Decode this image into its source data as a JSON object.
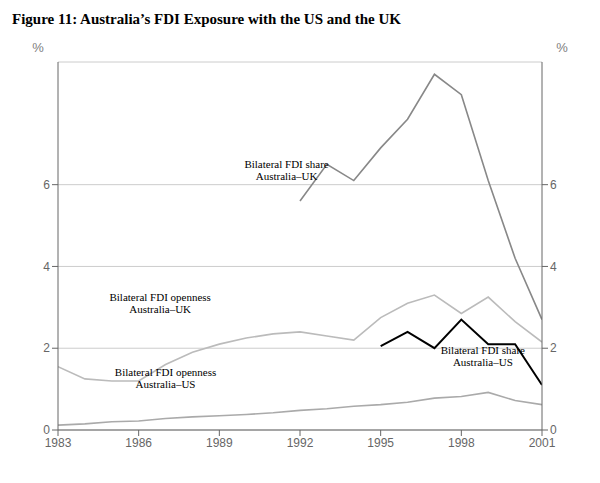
{
  "chart_data": {
    "type": "line",
    "title": "Figure 11: Australia’s FDI Exposure with the US and the UK",
    "x": [
      1983,
      1984,
      1985,
      1986,
      1987,
      1988,
      1989,
      1990,
      1991,
      1992,
      1993,
      1994,
      1995,
      1996,
      1997,
      1998,
      1999,
      2000,
      2001
    ],
    "xlim": [
      1983,
      2001
    ],
    "xticks": [
      1983,
      1986,
      1989,
      1992,
      1995,
      1998,
      2001
    ],
    "ylim": [
      0,
      9
    ],
    "yticks": [
      0,
      2,
      4,
      6
    ],
    "y2lim": [
      0,
      9
    ],
    "y2ticks": [
      0,
      2,
      4,
      6
    ],
    "ylabel": "%",
    "y2label": "%",
    "grid": true,
    "series": [
      {
        "color": "#888888",
        "values": [
          null,
          null,
          null,
          null,
          null,
          null,
          null,
          null,
          null,
          5.6,
          6.5,
          6.1,
          6.9,
          7.6,
          8.7,
          8.2,
          6.1,
          4.2,
          2.7
        ]
      },
      {
        "color": "#bbbbbb",
        "values": [
          1.55,
          1.25,
          1.2,
          1.2,
          1.6,
          1.9,
          2.1,
          2.25,
          2.35,
          2.4,
          2.3,
          2.2,
          2.75,
          3.1,
          3.3,
          2.85,
          3.25,
          2.65,
          2.15
        ]
      },
      {
        "color": "#000000",
        "values": [
          null,
          null,
          null,
          null,
          null,
          null,
          null,
          null,
          null,
          null,
          null,
          null,
          2.05,
          2.4,
          2.0,
          2.7,
          2.1,
          2.1,
          1.1
        ]
      },
      {
        "color": "#aaaaaa",
        "values": [
          0.12,
          0.15,
          0.2,
          0.22,
          0.28,
          0.32,
          0.35,
          0.38,
          0.42,
          0.48,
          0.52,
          0.58,
          0.62,
          0.68,
          0.78,
          0.82,
          0.92,
          0.72,
          0.62
        ]
      }
    ],
    "annotations": [
      {
        "text": "Bilateral FDI share\nAustralia–UK",
        "x": 1991.5,
        "y": 6.05
      },
      {
        "text": "Bilateral FDI openness\nAustralia–UK",
        "x": 1986.8,
        "y": 2.8
      },
      {
        "text": "Bilateral FDI share\nAustralia–US",
        "x": 1998.8,
        "y": 1.5
      },
      {
        "text": "Bilateral FDI openness\nAustralia–US",
        "x": 1987.0,
        "y": 0.95
      }
    ]
  }
}
